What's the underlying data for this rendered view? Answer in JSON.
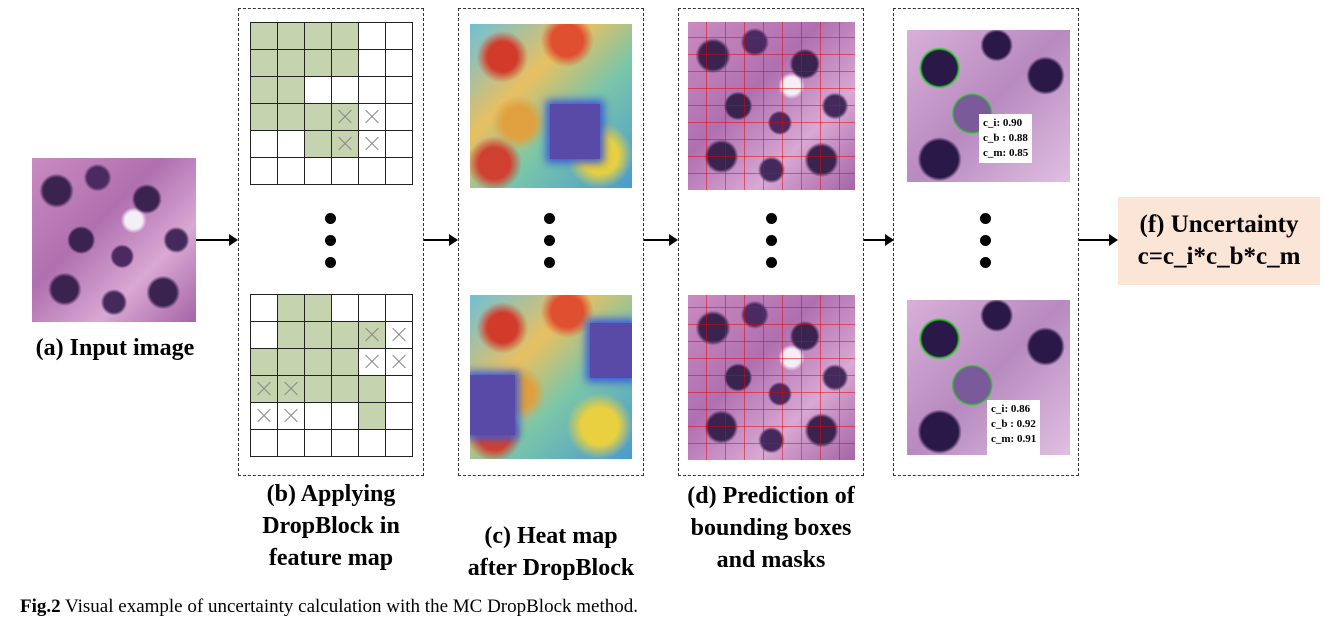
{
  "panels": {
    "a": {
      "label": "(a) Input image"
    },
    "b": {
      "label_lines": [
        "(b) Applying",
        "DropBlock in",
        "feature map"
      ],
      "grid_top": [
        [
          "g",
          "g",
          "g",
          "g",
          "w",
          "w"
        ],
        [
          "g",
          "g",
          "g",
          "g",
          "w",
          "w"
        ],
        [
          "g",
          "g",
          "w",
          "w",
          "w",
          "w"
        ],
        [
          "g",
          "g",
          "g",
          "gx",
          "wx",
          "w"
        ],
        [
          "w",
          "w",
          "g",
          "gx",
          "wx",
          "w"
        ],
        [
          "w",
          "w",
          "w",
          "w",
          "w",
          "w"
        ]
      ],
      "grid_bottom": [
        [
          "w",
          "g",
          "g",
          "w",
          "w",
          "w"
        ],
        [
          "w",
          "g",
          "g",
          "g",
          "gx",
          "wx"
        ],
        [
          "g",
          "g",
          "g",
          "g",
          "wx",
          "wx"
        ],
        [
          "gx",
          "gx",
          "g",
          "g",
          "g",
          "w"
        ],
        [
          "wx",
          "wx",
          "w",
          "w",
          "g",
          "w"
        ],
        [
          "w",
          "w",
          "w",
          "w",
          "w",
          "w"
        ]
      ]
    },
    "c": {
      "label_lines": [
        "(c) Heat map",
        "after DropBlock"
      ]
    },
    "d": {
      "label_lines": [
        "(d) Prediction of",
        "bounding boxes",
        "and masks"
      ]
    },
    "e": {
      "top_scores": [
        "c_i: 0.90",
        "c_b : 0.88",
        "c_m: 0.85"
      ],
      "bottom_scores": [
        "c_i: 0.86",
        "c_b : 0.92",
        "c_m: 0.91"
      ]
    },
    "f": {
      "title": "(f) Uncertainty",
      "formula": "c=c_i*c_b*c_m",
      "bg": "#fbe5d6"
    }
  },
  "caption": {
    "prefix": "Fig.2",
    "text": " Visual example of uncertainty calculation with the MC DropBlock method."
  }
}
